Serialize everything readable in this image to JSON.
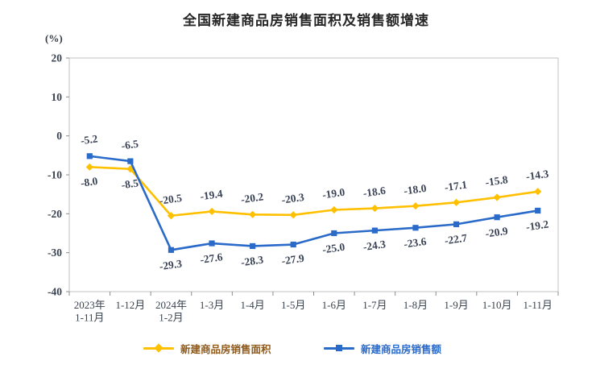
{
  "chart_data": {
    "type": "line",
    "title": "全国新建商品房销售面积及销售额增速",
    "unit_label": "(%)",
    "categories": [
      "2023年\n1-11月",
      "1-12月",
      "2024年\n1-2月",
      "1-3月",
      "1-4月",
      "1-5月",
      "1-6月",
      "1-7月",
      "1-8月",
      "1-9月",
      "1-10月",
      "1-11月"
    ],
    "series": [
      {
        "name": "新建商品房销售面积",
        "color": "#FFC000",
        "marker": "diamond",
        "legend_text_color": "#8F5A1A",
        "values": [
          -8.0,
          -8.5,
          -20.5,
          -19.4,
          -20.2,
          -20.3,
          -19.0,
          -18.6,
          -18.0,
          -17.1,
          -15.8,
          -14.3
        ]
      },
      {
        "name": "新建商品房销售额",
        "color": "#2A6AC9",
        "marker": "square",
        "legend_text_color": "#2A6AC9",
        "values": [
          -5.2,
          -6.5,
          -29.3,
          -27.6,
          -28.3,
          -27.9,
          -25.0,
          -24.3,
          -23.6,
          -22.7,
          -20.9,
          -19.2
        ]
      }
    ],
    "ylim": [
      -40,
      20
    ],
    "ytick_step": 10,
    "grid": false,
    "legend_position": "bottom",
    "colors": {
      "plot_border": "#C0C0C0",
      "tick": "#8C8C8C",
      "axis_label": "#3A4350",
      "data_label": "#3A4355",
      "title": "#262626"
    }
  }
}
